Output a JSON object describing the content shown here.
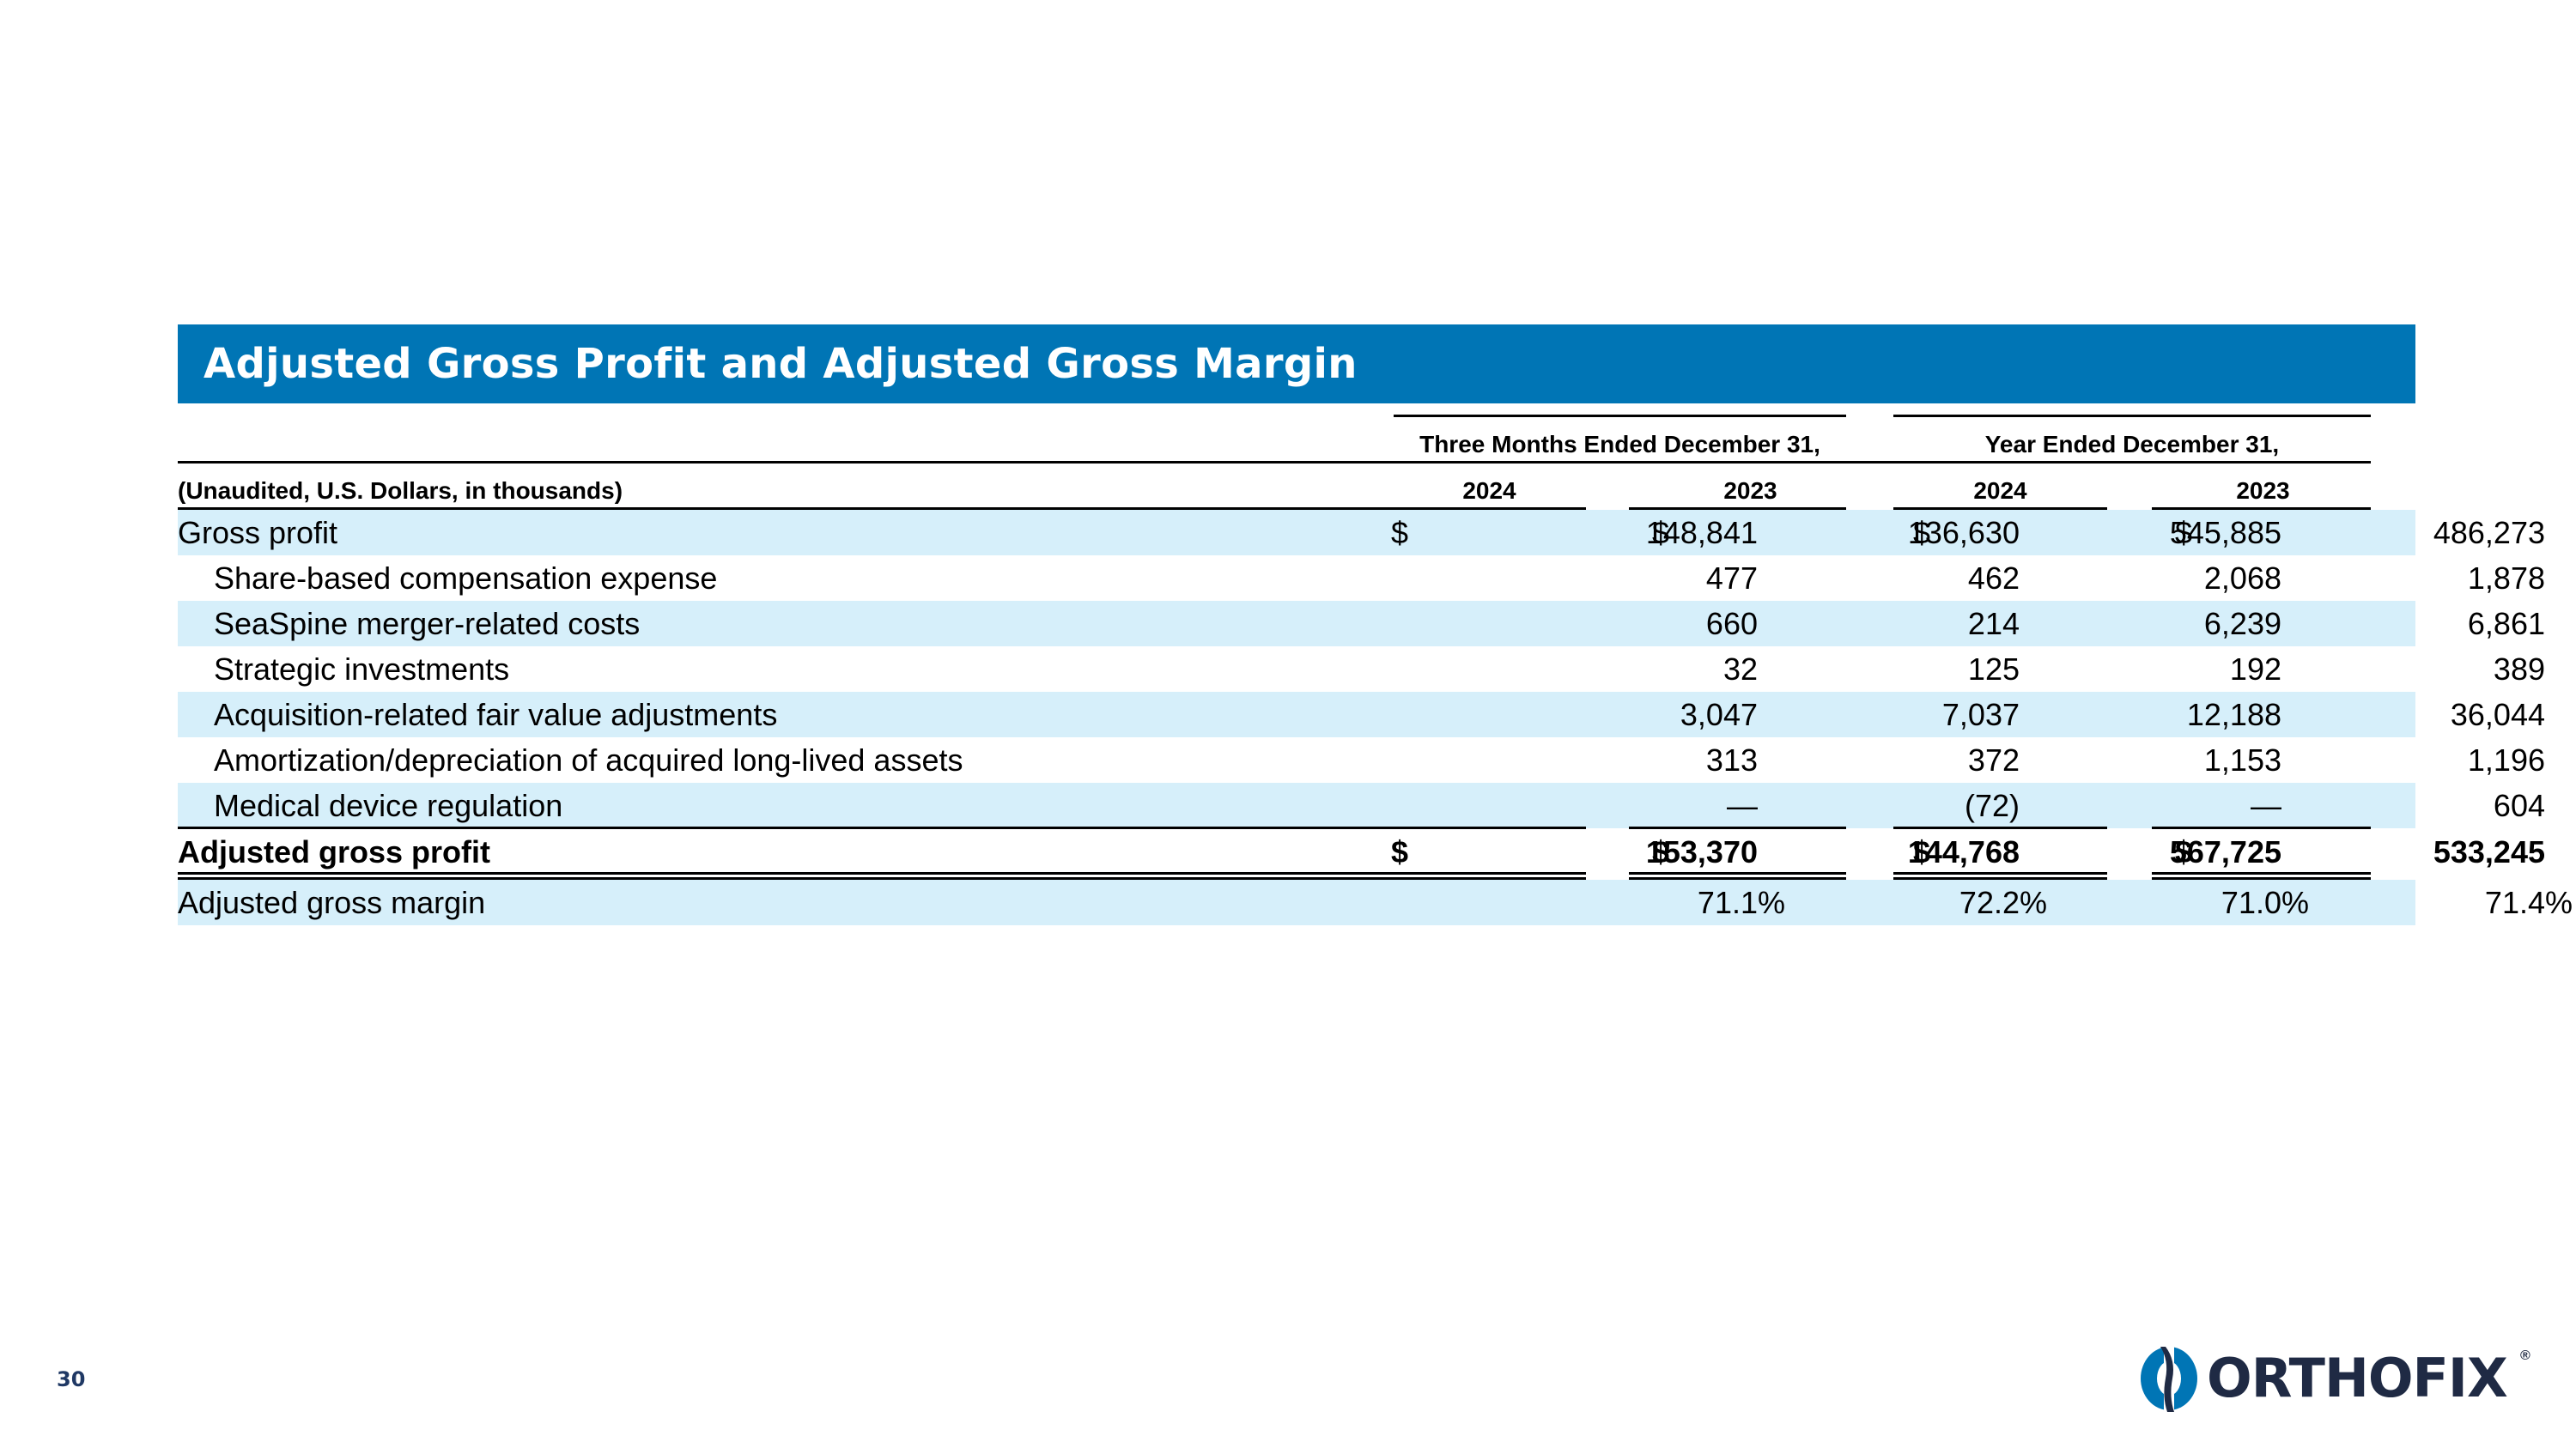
{
  "title": "Adjusted Gross Profit and Adjusted Gross Margin",
  "headers": {
    "group1": "Three Months Ended December 31,",
    "group2": "Year Ended December 31,",
    "units_label": "(Unaudited, U.S. Dollars, in thousands)",
    "years": [
      "2024",
      "2023",
      "2024",
      "2023"
    ]
  },
  "rows": [
    {
      "label": "Gross profit",
      "dollar": "$",
      "values": [
        "148,841",
        "136,630",
        "545,885",
        "486,273"
      ]
    },
    {
      "label": "Share-based compensation expense",
      "values": [
        "477",
        "462",
        "2,068",
        "1,878"
      ]
    },
    {
      "label": "SeaSpine merger-related costs",
      "values": [
        "660",
        "214",
        "6,239",
        "6,861"
      ]
    },
    {
      "label": "Strategic investments",
      "values": [
        "32",
        "125",
        "192",
        "389"
      ]
    },
    {
      "label": "Acquisition-related fair value adjustments",
      "values": [
        "3,047",
        "7,037",
        "12,188",
        "36,044"
      ]
    },
    {
      "label": "Amortization/depreciation of acquired long-lived assets",
      "values": [
        "313",
        "372",
        "1,153",
        "1,196"
      ]
    },
    {
      "label": "Medical device regulation",
      "values": [
        "—",
        "(72)",
        "—",
        "604"
      ]
    },
    {
      "label": "Adjusted gross profit",
      "dollar": "$",
      "values": [
        "153,370",
        "144,768",
        "567,725",
        "533,245"
      ]
    },
    {
      "label": "Adjusted gross margin",
      "values": [
        "71.1%",
        "72.2%",
        "71.0%",
        "71.4%"
      ]
    }
  ],
  "footer": {
    "page_number": "30",
    "logo_text": "ORTHOFIX",
    "logo_mark": "®"
  },
  "colors": {
    "title_bar": "#0075B5",
    "row_shade": "#D6EFFA",
    "logo": "#1F2A44"
  }
}
